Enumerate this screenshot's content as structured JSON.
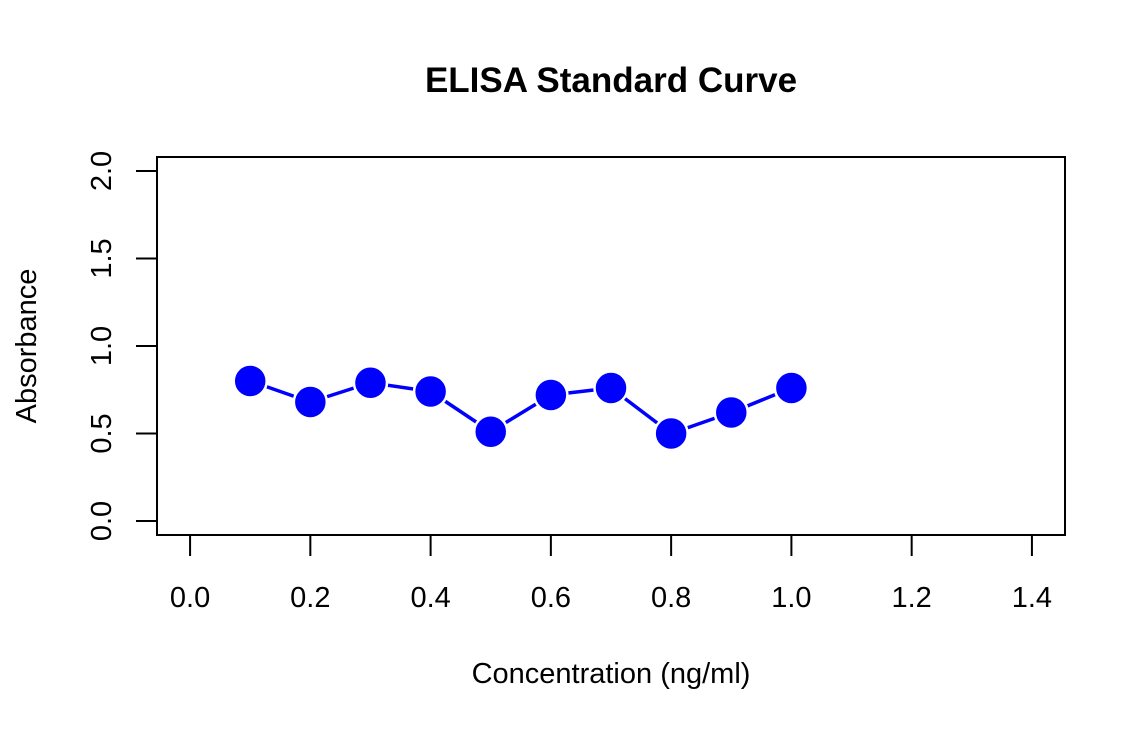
{
  "chart_data": {
    "type": "line",
    "title": "ELISA Standard Curve",
    "xlabel": "Concentration (ng/ml)",
    "ylabel": "Absorbance",
    "xlim": [
      -0.055,
      1.455
    ],
    "ylim": [
      -0.08,
      2.08
    ],
    "x_ticks": [
      0.0,
      0.2,
      0.4,
      0.6,
      0.8,
      1.0,
      1.2,
      1.4
    ],
    "x_tick_labels": [
      "0.0",
      "0.2",
      "0.4",
      "0.6",
      "0.8",
      "1.0",
      "1.2",
      "1.4"
    ],
    "y_ticks": [
      0.0,
      0.5,
      1.0,
      1.5,
      2.0
    ],
    "y_tick_labels": [
      "0.0",
      "0.5",
      "1.0",
      "1.5",
      "2.0"
    ],
    "grid": false,
    "legend": "none",
    "series": [
      {
        "color": "#0000ff",
        "marker": "filled-circle",
        "x": [
          0.1,
          0.2,
          0.3,
          0.4,
          0.5,
          0.6,
          0.7,
          0.8,
          0.9,
          1.0
        ],
        "y": [
          0.8,
          0.68,
          0.79,
          0.74,
          0.51,
          0.72,
          0.76,
          0.5,
          0.62,
          0.76
        ]
      }
    ]
  }
}
